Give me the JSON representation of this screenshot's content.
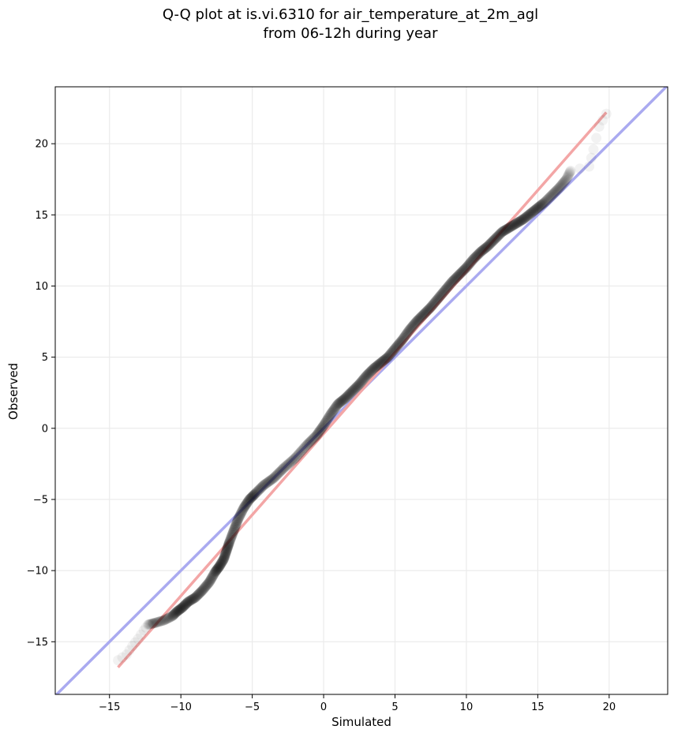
{
  "chart_data": {
    "type": "scatter",
    "title_line1": "Q-Q plot at is.vi.6310 for air_temperature_at_2m_agl",
    "title_line2": "from 06-12h during year",
    "xlabel": "Simulated",
    "ylabel": "Observed",
    "xlim": [
      -18.8,
      24.1
    ],
    "ylim": [
      -18.7,
      24.0
    ],
    "xticks": [
      -15,
      -10,
      -5,
      0,
      5,
      10,
      15,
      20
    ],
    "yticks": [
      -15,
      -10,
      -5,
      0,
      5,
      10,
      15,
      20
    ],
    "xtick_labels": [
      "−15",
      "−10",
      "−5",
      "0",
      "5",
      "10",
      "15",
      "20"
    ],
    "ytick_labels": [
      "−15",
      "−10",
      "−5",
      "0",
      "5",
      "10",
      "15",
      "20"
    ],
    "grid": true,
    "colors": {
      "identity_line": "#aaaaf0",
      "fit_line": "#f3a6a6",
      "points": "#000000"
    },
    "identity_line": {
      "x": [
        -18.8,
        24.1
      ],
      "y": [
        -18.8,
        24.1
      ]
    },
    "fit_line": {
      "x": [
        -14.4,
        19.8
      ],
      "y": [
        -16.8,
        22.2
      ]
    },
    "quantiles": {
      "x": [
        -14.4,
        -13.8,
        -13.4,
        -13.0,
        -12.6,
        -12.3,
        -11.9,
        -11.2,
        -10.6,
        -10.3,
        -9.9,
        -9.5,
        -9.0,
        -8.5,
        -8.0,
        -7.6,
        -7.3,
        -7.0,
        -6.8,
        -6.6,
        -6.3,
        -6.0,
        -5.6,
        -5.2,
        -4.8,
        -4.2,
        -3.5,
        -2.8,
        -2.0,
        -1.2,
        -0.5,
        0.0,
        0.5,
        1.0,
        1.5,
        2.0,
        2.5,
        3.0,
        3.5,
        4.0,
        4.5,
        5.0,
        5.5,
        6.0,
        6.5,
        7.0,
        7.5,
        8.0,
        8.5,
        9.0,
        9.5,
        10.0,
        10.5,
        11.0,
        11.5,
        12.0,
        12.5,
        13.0,
        13.5,
        14.0,
        14.5,
        15.0,
        15.5,
        16.0,
        16.5,
        17.0,
        17.3,
        18.6,
        18.9,
        19.3,
        19.8
      ],
      "y": [
        -16.3,
        -15.9,
        -15.3,
        -14.8,
        -14.2,
        -13.8,
        -13.7,
        -13.5,
        -13.2,
        -12.9,
        -12.6,
        -12.2,
        -11.9,
        -11.4,
        -10.8,
        -10.1,
        -9.7,
        -9.2,
        -8.6,
        -8.0,
        -7.2,
        -6.4,
        -5.6,
        -5.0,
        -4.6,
        -4.0,
        -3.5,
        -2.8,
        -2.1,
        -1.2,
        -0.5,
        0.2,
        1.0,
        1.7,
        2.1,
        2.6,
        3.1,
        3.7,
        4.2,
        4.6,
        5.0,
        5.6,
        6.2,
        6.9,
        7.5,
        8.0,
        8.5,
        9.1,
        9.7,
        10.3,
        10.8,
        11.3,
        11.9,
        12.4,
        12.8,
        13.3,
        13.8,
        14.1,
        14.4,
        14.7,
        15.1,
        15.5,
        15.9,
        16.4,
        16.9,
        17.5,
        18.1,
        18.4,
        19.6,
        21.2,
        22.1
      ]
    }
  }
}
